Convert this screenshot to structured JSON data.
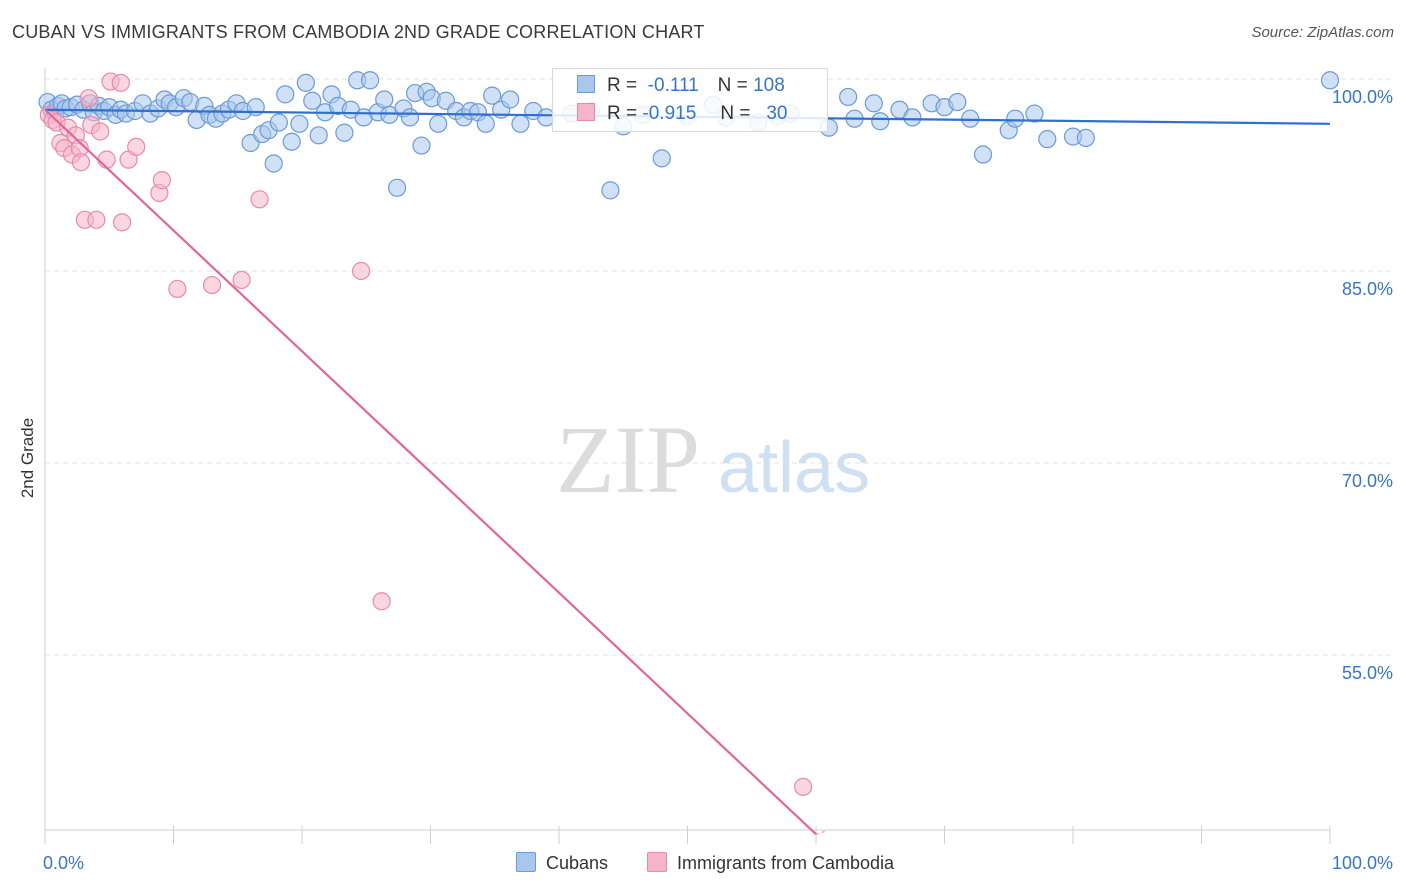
{
  "header": {
    "title": "CUBAN VS IMMIGRANTS FROM CAMBODIA 2ND GRADE CORRELATION CHART",
    "source": "Source: ZipAtlas.com"
  },
  "legend": {
    "rows": [
      {
        "r_label": "R =",
        "r_value": "-0.111",
        "n_label": "N =",
        "n_value": "108"
      },
      {
        "r_label": "R =",
        "r_value": "-0.915",
        "n_label": "N =",
        "n_value": "30"
      }
    ]
  },
  "bottom_legend": {
    "items": [
      {
        "label": "Cubans"
      },
      {
        "label": "Immigrants from Cambodia"
      }
    ]
  },
  "watermark": {
    "zip": "ZIP",
    "atlas": "atlas"
  },
  "colors": {
    "cubans_fill": "#a9c6ec",
    "cubans_stroke": "#6b9bd6",
    "cubans_line": "#2f6fcf",
    "cambodia_fill": "#f5b5c8",
    "cambodia_stroke": "#e98aa8",
    "cambodia_line": "#e0669a",
    "tick_label": "#3a74c4",
    "grid": "#e2e2e2"
  },
  "chart_data": {
    "type": "scatter",
    "title": "CUBAN VS IMMIGRANTS FROM CAMBODIA 2ND GRADE CORRELATION CHART",
    "xlabel": "",
    "ylabel": "2nd Grade",
    "xlim": [
      0,
      100
    ],
    "ylim": [
      40,
      102
    ],
    "x_tick_labels": [
      "0.0%",
      "100.0%"
    ],
    "y_ticks": [
      55,
      70,
      85,
      100
    ],
    "y_tick_labels": [
      "55.0%",
      "70.0%",
      "85.0%",
      "100.0%"
    ],
    "grid": true,
    "legend_position": "top-center",
    "series": [
      {
        "name": "Cubans",
        "R": -0.111,
        "N": 108,
        "trend": {
          "x": [
            0,
            100
          ],
          "y": [
            97.6,
            96.5
          ]
        },
        "points": [
          [
            0.2,
            98.2
          ],
          [
            0.5,
            97.6
          ],
          [
            0.8,
            97.4
          ],
          [
            1.0,
            97.9
          ],
          [
            1.3,
            98.1
          ],
          [
            1.6,
            97.7
          ],
          [
            2.0,
            97.8
          ],
          [
            2.5,
            98.0
          ],
          [
            3.0,
            97.6
          ],
          [
            3.5,
            98.1
          ],
          [
            3.8,
            97.4
          ],
          [
            4.2,
            97.9
          ],
          [
            4.6,
            97.5
          ],
          [
            5.0,
            97.8
          ],
          [
            5.5,
            97.2
          ],
          [
            5.9,
            97.6
          ],
          [
            6.3,
            97.3
          ],
          [
            7.0,
            97.5
          ],
          [
            7.6,
            98.1
          ],
          [
            8.2,
            97.3
          ],
          [
            8.8,
            97.7
          ],
          [
            9.3,
            98.4
          ],
          [
            9.7,
            98.1
          ],
          [
            10.2,
            97.8
          ],
          [
            10.8,
            98.5
          ],
          [
            11.3,
            98.2
          ],
          [
            11.8,
            96.8
          ],
          [
            12.4,
            97.9
          ],
          [
            12.8,
            97.2
          ],
          [
            13.3,
            96.9
          ],
          [
            13.8,
            97.3
          ],
          [
            14.3,
            97.6
          ],
          [
            14.9,
            98.1
          ],
          [
            15.4,
            97.5
          ],
          [
            16.0,
            95.0
          ],
          [
            16.4,
            97.8
          ],
          [
            16.9,
            95.7
          ],
          [
            17.4,
            96.0
          ],
          [
            17.8,
            93.4
          ],
          [
            18.2,
            96.6
          ],
          [
            18.7,
            98.8
          ],
          [
            19.2,
            95.1
          ],
          [
            19.8,
            96.5
          ],
          [
            20.3,
            99.7
          ],
          [
            20.8,
            98.3
          ],
          [
            21.3,
            95.6
          ],
          [
            21.8,
            97.4
          ],
          [
            22.3,
            98.8
          ],
          [
            22.8,
            97.9
          ],
          [
            23.3,
            95.8
          ],
          [
            23.8,
            97.6
          ],
          [
            24.3,
            99.9
          ],
          [
            24.8,
            97.0
          ],
          [
            25.3,
            99.9
          ],
          [
            25.9,
            97.4
          ],
          [
            26.4,
            98.4
          ],
          [
            26.8,
            97.2
          ],
          [
            27.4,
            91.5
          ],
          [
            27.9,
            97.7
          ],
          [
            28.4,
            97.0
          ],
          [
            28.8,
            98.9
          ],
          [
            29.3,
            94.8
          ],
          [
            29.7,
            99.0
          ],
          [
            30.1,
            98.5
          ],
          [
            30.6,
            96.5
          ],
          [
            31.2,
            98.3
          ],
          [
            32.0,
            97.5
          ],
          [
            32.6,
            97.0
          ],
          [
            33.1,
            97.5
          ],
          [
            33.7,
            97.4
          ],
          [
            34.3,
            96.5
          ],
          [
            34.8,
            98.7
          ],
          [
            35.5,
            97.6
          ],
          [
            36.2,
            98.4
          ],
          [
            37.0,
            96.5
          ],
          [
            38.0,
            97.5
          ],
          [
            39.0,
            97.0
          ],
          [
            41.0,
            97.3
          ],
          [
            42.5,
            97.5
          ],
          [
            44.0,
            91.3
          ],
          [
            45.0,
            96.3
          ],
          [
            46.5,
            97.2
          ],
          [
            48.0,
            93.8
          ],
          [
            50.0,
            97.1
          ],
          [
            52.0,
            98.0
          ],
          [
            53.0,
            97.0
          ],
          [
            55.5,
            96.6
          ],
          [
            57.0,
            97.1
          ],
          [
            58.0,
            97.3
          ],
          [
            61.0,
            96.2
          ],
          [
            62.5,
            98.6
          ],
          [
            63.0,
            96.9
          ],
          [
            64.5,
            98.1
          ],
          [
            65.0,
            96.7
          ],
          [
            66.5,
            97.6
          ],
          [
            67.5,
            97.0
          ],
          [
            69.0,
            98.1
          ],
          [
            70.0,
            97.8
          ],
          [
            71.0,
            98.2
          ],
          [
            72.0,
            96.9
          ],
          [
            73.0,
            94.1
          ],
          [
            75.0,
            96.0
          ],
          [
            75.5,
            96.9
          ],
          [
            78.0,
            95.3
          ],
          [
            80.0,
            95.5
          ],
          [
            81.0,
            95.4
          ],
          [
            100.0,
            99.9
          ],
          [
            77.0,
            97.3
          ]
        ]
      },
      {
        "name": "Immigrants from Cambodia",
        "R": -0.915,
        "N": 30,
        "trend": {
          "x": [
            0,
            60
          ],
          "y": [
            97.6,
            41.0
          ]
        },
        "points": [
          [
            0.3,
            97.2
          ],
          [
            0.6,
            96.8
          ],
          [
            0.9,
            96.6
          ],
          [
            1.2,
            95.0
          ],
          [
            1.5,
            94.6
          ],
          [
            1.8,
            96.2
          ],
          [
            2.1,
            94.1
          ],
          [
            2.4,
            95.6
          ],
          [
            2.7,
            94.6
          ],
          [
            2.8,
            93.5
          ],
          [
            3.1,
            89.0
          ],
          [
            3.4,
            98.5
          ],
          [
            3.6,
            96.4
          ],
          [
            4.0,
            89.0
          ],
          [
            4.3,
            95.9
          ],
          [
            4.8,
            93.7
          ],
          [
            5.1,
            99.8
          ],
          [
            5.9,
            99.7
          ],
          [
            6.0,
            88.8
          ],
          [
            6.5,
            93.7
          ],
          [
            7.1,
            94.7
          ],
          [
            8.9,
            91.1
          ],
          [
            9.1,
            92.1
          ],
          [
            10.3,
            83.6
          ],
          [
            13.0,
            83.9
          ],
          [
            15.3,
            84.3
          ],
          [
            16.7,
            90.6
          ],
          [
            24.6,
            85.0
          ],
          [
            26.2,
            59.2
          ],
          [
            59.0,
            44.7
          ]
        ]
      }
    ]
  }
}
